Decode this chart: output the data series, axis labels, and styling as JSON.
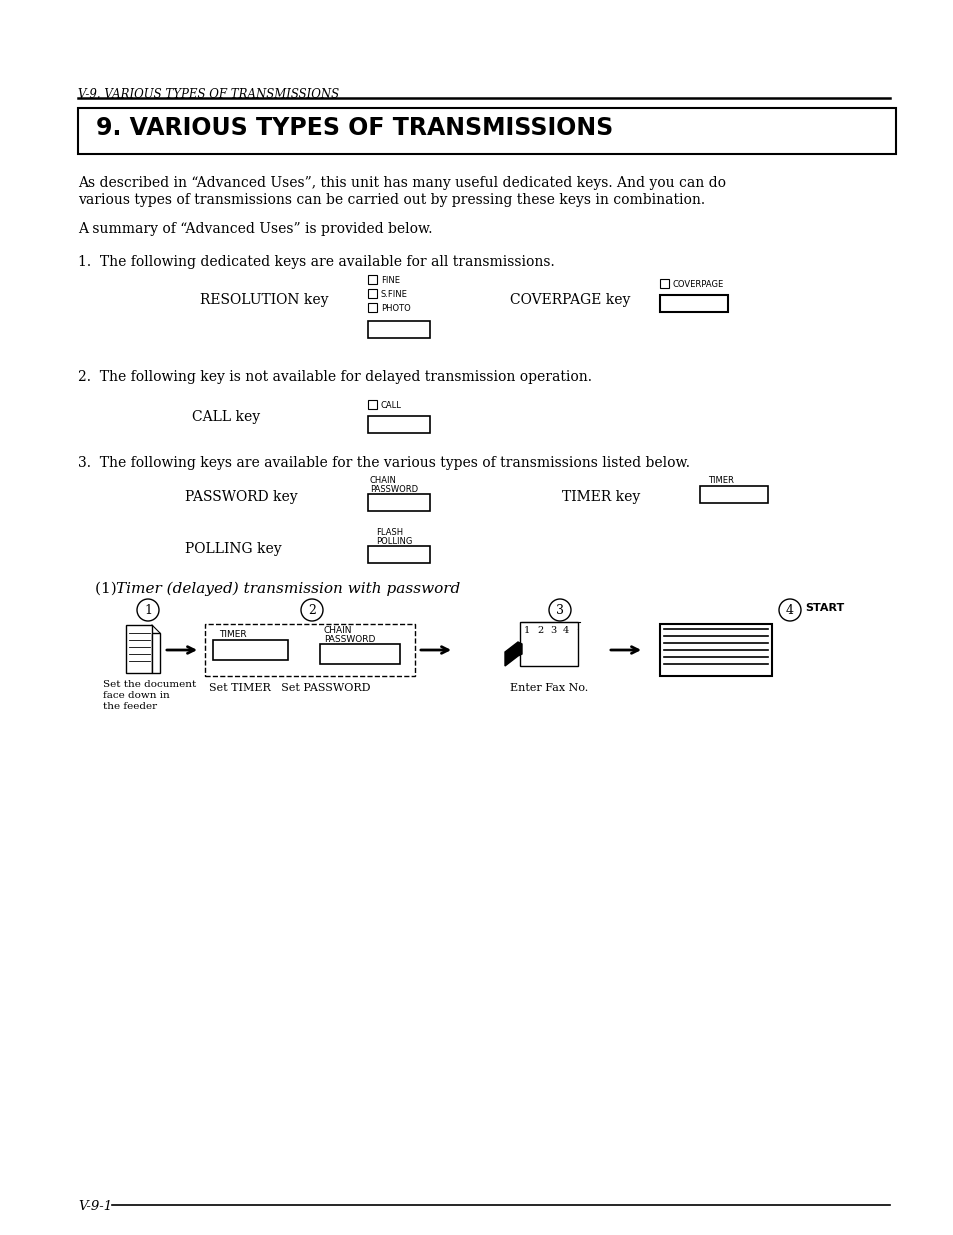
{
  "bg_color": "#ffffff",
  "header_italic": "V-9. VARIOUS TYPES OF TRANSMISSIONS",
  "title_box_text": "9. VARIOUS TYPES OF TRANSMISSIONS",
  "para1_l1": "As described in “Advanced Uses”, this unit has many useful dedicated keys. And you can do",
  "para1_l2": "various types of transmissions can be carried out by pressing these keys in combination.",
  "para2": "A summary of “Advanced Uses” is provided below.",
  "item1_text": "1.  The following dedicated keys are available for all transmissions.",
  "item2_text": "2.  The following key is not available for delayed transmission operation.",
  "item3_text": "3.  The following keys are available for the various types of transmissions listed below.",
  "subhead": "(1) Timer (delayed) transmission with password",
  "footer_text": "V-9-1",
  "res_labels": [
    "FINE",
    "S.FINE",
    "PHOTO"
  ],
  "cov_label": "COVERPAGE",
  "call_label": "CALL",
  "chain_label": "CHAIN",
  "password_label": "PASSWORD",
  "timer_label": "TIMER",
  "flash_label": "FLASH",
  "polling_label": "POLLING",
  "step_labels": [
    "Set the document\nface down in\nthe feeder",
    "Set TIMER   Set PASSWORD",
    "Enter Fax No.",
    ""
  ],
  "start_label": "START"
}
